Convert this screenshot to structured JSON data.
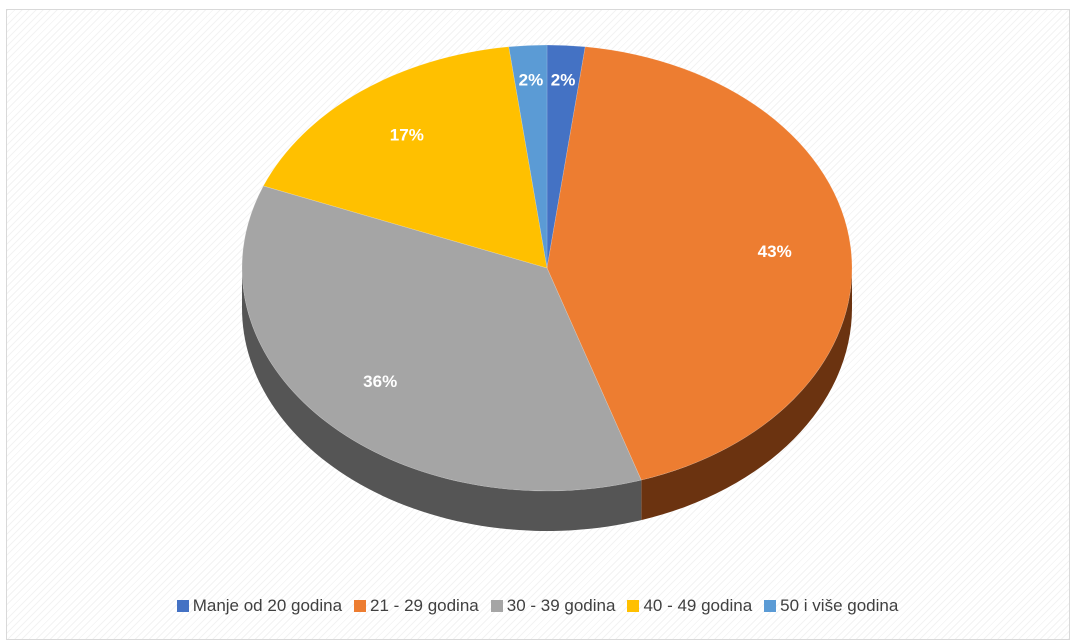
{
  "chart_data": {
    "type": "pie",
    "title": "",
    "style": "3d",
    "legend_position": "bottom",
    "series": [
      {
        "categories": [
          "Manje od 20 godina",
          "21 - 29 godina",
          "30 - 39 godina",
          "40 - 49 godina",
          "50 i više godina"
        ],
        "values": [
          2,
          43,
          36,
          17,
          2
        ],
        "labels": [
          "2%",
          "43%",
          "36%",
          "17%",
          "2%"
        ],
        "colors": [
          "#4472c4",
          "#ed7d31",
          "#a5a5a5",
          "#ffc000",
          "#5b9bd5"
        ],
        "side_colors": [
          "#2b4a82",
          "#6b3310",
          "#555555",
          "#8a6a00",
          "#2f5f8e"
        ]
      }
    ]
  }
}
